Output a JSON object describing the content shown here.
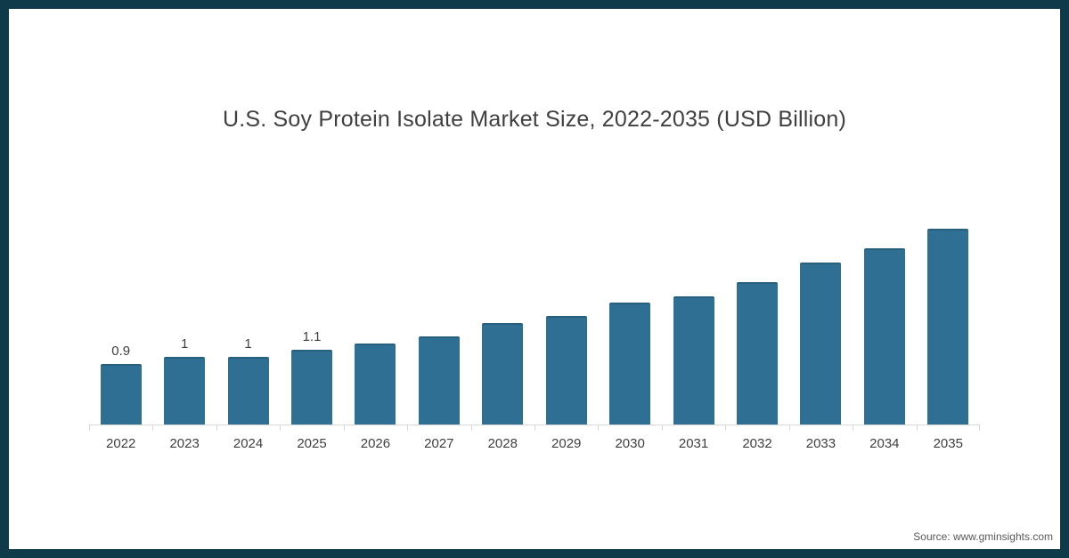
{
  "chart": {
    "title": "U.S. Soy Protein Isolate Market Size, 2022-2035 (USD Billion)"
  },
  "source": {
    "text": "Source: www.gminsights.com"
  },
  "colors": {
    "frame": "#0e3a49",
    "background": "#ffffff",
    "bar": "#2f6f94",
    "bar_cap": "#27607f",
    "axis": "#d9d9d9",
    "text": "#404040",
    "source_text": "#595959"
  },
  "chart_data": {
    "type": "bar",
    "title": "U.S. Soy Protein Isolate Market Size, 2022-2035 (USD Billion)",
    "categories": [
      "2022",
      "2023",
      "2024",
      "2025",
      "2026",
      "2027",
      "2028",
      "2029",
      "2030",
      "2031",
      "2032",
      "2033",
      "2034",
      "2035"
    ],
    "values": [
      0.9,
      1,
      1,
      1.1,
      1.2,
      1.3,
      1.5,
      1.6,
      1.8,
      1.9,
      2.1,
      2.4,
      2.6,
      2.9
    ],
    "bar_labels": [
      "0.9",
      "1",
      "1",
      "1.1",
      "",
      "",
      "",
      "",
      "",
      "",
      "",
      "",
      "",
      ""
    ],
    "xlabel": "",
    "ylabel": "",
    "ylim": [
      0,
      3
    ],
    "grid": false,
    "legend": false,
    "bar_color": "#2f6f94",
    "source": "Source: www.gminsights.com"
  }
}
